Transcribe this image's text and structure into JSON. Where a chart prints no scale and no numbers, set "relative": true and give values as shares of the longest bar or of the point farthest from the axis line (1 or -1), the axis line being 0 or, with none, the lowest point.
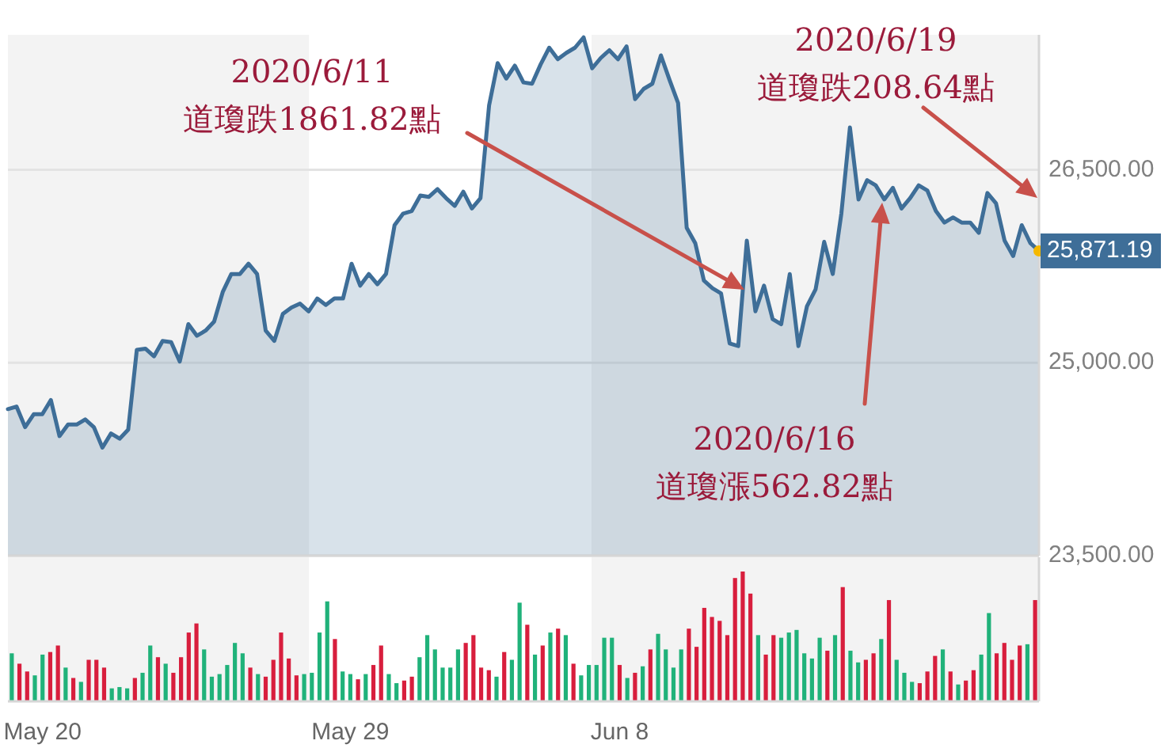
{
  "chart_data": [
    {
      "type": "area",
      "color": "#3e6e98",
      "categories": [
        null,
        null,
        null,
        null,
        null,
        null,
        null,
        null,
        null,
        null,
        null,
        null,
        null,
        null,
        null,
        null,
        null,
        null,
        null,
        null,
        null,
        null,
        null,
        null,
        null,
        null,
        null,
        null,
        null,
        null,
        null,
        null,
        null,
        null,
        null,
        null,
        null,
        null,
        null,
        null,
        null,
        null,
        null,
        null,
        null,
        null,
        null,
        null,
        null,
        null,
        null,
        null,
        null,
        null,
        null,
        null,
        null,
        null,
        null,
        null,
        null,
        null,
        null,
        null,
        null,
        null,
        null,
        null,
        null,
        null,
        null,
        null,
        null,
        null,
        null,
        null,
        null,
        null,
        null,
        null,
        null,
        null,
        null,
        null,
        null,
        null,
        null,
        null,
        null,
        null,
        null,
        null,
        null,
        null,
        null,
        null,
        null,
        null,
        null,
        null,
        null,
        null,
        null,
        null,
        null,
        null,
        null,
        null,
        null,
        null,
        null,
        null,
        null,
        null,
        null,
        null,
        null,
        null,
        null,
        null,
        null
      ],
      "values": [
        24640,
        24660,
        24500,
        24600,
        24600,
        24710,
        24430,
        24520,
        24520,
        24560,
        24500,
        24340,
        24450,
        24410,
        24480,
        25100,
        25110,
        25050,
        25170,
        25160,
        25010,
        25300,
        25210,
        25250,
        25320,
        25550,
        25690,
        25690,
        25770,
        25690,
        25250,
        25170,
        25380,
        25430,
        25460,
        25400,
        25500,
        25450,
        25500,
        25500,
        25770,
        25600,
        25690,
        25610,
        25690,
        26070,
        26160,
        26180,
        26300,
        26290,
        26350,
        26280,
        26220,
        26330,
        26200,
        26280,
        27000,
        27330,
        27210,
        27310,
        27180,
        27170,
        27320,
        27450,
        27360,
        27410,
        27450,
        27530,
        27290,
        27370,
        27430,
        27360,
        27460,
        27050,
        27130,
        27170,
        27390,
        27200,
        27020,
        26050,
        25930,
        25640,
        25580,
        25540,
        25150,
        25130,
        25950,
        25400,
        25600,
        25340,
        25300,
        25690,
        25130,
        25440,
        25570,
        25940,
        25690,
        26160,
        26830,
        26270,
        26420,
        26380,
        26270,
        26360,
        26200,
        26280,
        26380,
        26340,
        26180,
        26090,
        26130,
        26090,
        26090,
        26010,
        26320,
        26240,
        25950,
        25830,
        26070,
        25930,
        25870
      ],
      "ylim": [
        23500,
        27550
      ],
      "yticks": [
        {
          "value": 23500,
          "label": "23,500.00"
        },
        {
          "value": 25000,
          "label": "25,000.00"
        },
        {
          "value": 26500,
          "label": "26,500.00"
        }
      ],
      "tick_labels": "y",
      "grid": "y",
      "annotations": [
        "2020/6/11\n道瓊跌1861.82點",
        "2020/6/16\n道瓊漲562.82點",
        "2020/6/19\n道瓊跌208.64點",
        "25,871.19"
      ]
    },
    {
      "type": "bar",
      "relative": true,
      "tick_labels": "x",
      "categories": [
        null,
        null,
        null,
        null,
        "May 20",
        null,
        null,
        null,
        null,
        null,
        null,
        null,
        null,
        null,
        null,
        null,
        null,
        null,
        null,
        null,
        null,
        null,
        null,
        null,
        null,
        null,
        null,
        null,
        null,
        null,
        null,
        null,
        null,
        null,
        null,
        null,
        null,
        null,
        null,
        null,
        null,
        null,
        null,
        null,
        "May 29",
        null,
        null,
        null,
        null,
        null,
        null,
        null,
        null,
        null,
        null,
        null,
        null,
        null,
        null,
        null,
        null,
        null,
        null,
        null,
        null,
        null,
        null,
        null,
        null,
        null,
        null,
        null,
        null,
        null,
        null,
        null,
        null,
        null,
        null,
        "Jun 8",
        null,
        null,
        null,
        null,
        null,
        null,
        null,
        null,
        null,
        null,
        null,
        null,
        null,
        null,
        null,
        null,
        null,
        null,
        null,
        null,
        null,
        null,
        null,
        null,
        null,
        null,
        null,
        null,
        null,
        null,
        null,
        null,
        null,
        null,
        null,
        null,
        null,
        null,
        null,
        null,
        null,
        null,
        null,
        null,
        null,
        null,
        null,
        null,
        null,
        null,
        null,
        null,
        null,
        null
      ],
      "values": [
        0.37,
        0.29,
        0.23,
        0.2,
        0.36,
        0.38,
        0.43,
        0.26,
        0.18,
        0.15,
        0.32,
        0.32,
        0.26,
        0.1,
        0.11,
        0.1,
        0.18,
        0.22,
        0.43,
        0.34,
        0.29,
        0.22,
        0.34,
        0.53,
        0.6,
        0.4,
        0.19,
        0.21,
        0.28,
        0.45,
        0.37,
        0.26,
        0.21,
        0.19,
        0.32,
        0.53,
        0.33,
        0.2,
        0.21,
        0.22,
        0.53,
        0.77,
        0.48,
        0.23,
        0.21,
        0.17,
        0.21,
        0.28,
        0.43,
        0.21,
        0.14,
        0.16,
        0.19,
        0.34,
        0.51,
        0.4,
        0.26,
        0.26,
        0.4,
        0.45,
        0.51,
        0.26,
        0.24,
        0.19,
        0.38,
        0.32,
        0.76,
        0.59,
        0.36,
        0.43,
        0.53,
        0.56,
        0.51,
        0.29,
        0.2,
        0.28,
        0.28,
        0.49,
        0.49,
        0.28,
        0.18,
        0.22,
        0.27,
        0.4,
        0.52,
        0.4,
        0.26,
        0.4,
        0.56,
        0.42,
        0.72,
        0.65,
        0.62,
        0.51,
        0.95,
        1,
        0.83,
        0.51,
        0.36,
        0.51,
        0.49,
        0.53,
        0.55,
        0.37,
        0.33,
        0.49,
        0.39,
        0.51,
        0.88,
        0.39,
        0.3,
        0.32,
        0.37,
        0.48,
        0.78,
        0.32,
        0.22,
        0.15,
        0.14,
        0.23,
        0.35,
        0.4,
        0.23,
        0.13,
        0.16,
        0.24,
        0.36,
        0.68,
        0.37,
        0.45,
        0.32,
        0.43,
        0.44,
        0.78
      ],
      "colors": [
        "#20b27a",
        "#d81e3d",
        "#d81e3d",
        "#20b27a",
        "#20b27a",
        "#d81e3d",
        "#d81e3d",
        "#20b27a",
        "#d81e3d",
        "#20b27a",
        "#d81e3d",
        "#d81e3d",
        "#d81e3d",
        "#20b27a",
        "#20b27a",
        "#20b27a",
        "#d81e3d",
        "#20b27a",
        "#20b27a",
        "#d81e3d",
        "#20b27a",
        "#d81e3d",
        "#d81e3d",
        "#d81e3d",
        "#d81e3d",
        "#20b27a",
        "#20b27a",
        "#20b27a",
        "#20b27a",
        "#20b27a",
        "#20b27a",
        "#d81e3d",
        "#20b27a",
        "#d81e3d",
        "#d81e3d",
        "#d81e3d",
        "#d81e3d",
        "#d81e3d",
        "#20b27a",
        "#20b27a",
        "#20b27a",
        "#20b27a",
        "#d81e3d",
        "#20b27a",
        "#20b27a",
        "#d81e3d",
        "#20b27a",
        "#d81e3d",
        "#d81e3d",
        "#20b27a",
        "#20b27a",
        "#d81e3d",
        "#d81e3d",
        "#20b27a",
        "#20b27a",
        "#20b27a",
        "#20b27a",
        "#20b27a",
        "#20b27a",
        "#d81e3d",
        "#d81e3d",
        "#d81e3d",
        "#d81e3d",
        "#20b27a",
        "#d81e3d",
        "#20b27a",
        "#20b27a",
        "#d81e3d",
        "#20b27a",
        "#d81e3d",
        "#20b27a",
        "#d81e3d",
        "#20b27a",
        "#d81e3d",
        "#20b27a",
        "#20b27a",
        "#20b27a",
        "#20b27a",
        "#20b27a",
        "#d81e3d",
        "#20b27a",
        "#d81e3d",
        "#20b27a",
        "#d81e3d",
        "#20b27a",
        "#20b27a",
        "#20b27a",
        "#20b27a",
        "#d81e3d",
        "#d81e3d",
        "#d81e3d",
        "#d81e3d",
        "#d81e3d",
        "#d81e3d",
        "#d81e3d",
        "#d81e3d",
        "#d81e3d",
        "#20b27a",
        "#d81e3d",
        "#d81e3d",
        "#20b27a",
        "#20b27a",
        "#20b27a",
        "#20b27a",
        "#20b27a",
        "#20b27a",
        "#d81e3d",
        "#20b27a",
        "#d81e3d",
        "#20b27a",
        "#20b27a",
        "#d81e3d",
        "#d81e3d",
        "#20b27a",
        "#d81e3d",
        "#20b27a",
        "#20b27a",
        "#20b27a",
        "#d81e3d",
        "#d81e3d",
        "#d81e3d",
        "#20b27a",
        "#d81e3d",
        "#20b27a",
        "#d81e3d",
        "#d81e3d",
        "#20b27a",
        "#20b27a",
        "#d81e3d",
        "#d81e3d",
        "#d81e3d",
        "#d81e3d",
        "#20b27a",
        "#d81e3d"
      ]
    }
  ]
}
